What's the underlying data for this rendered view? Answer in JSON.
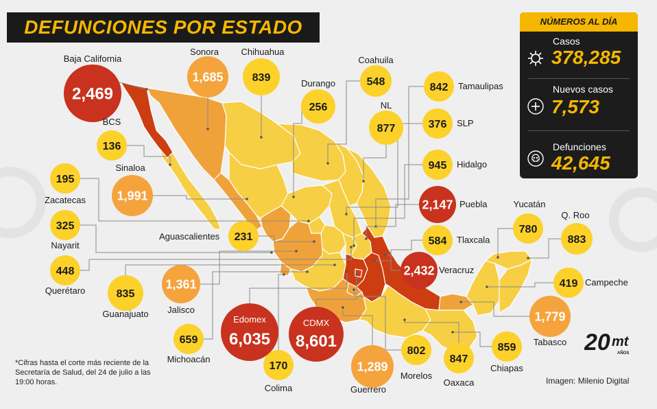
{
  "title": "DEFUNCIONES POR ESTADO",
  "panel": {
    "header": "NÚMEROS AL DÍA",
    "stats": [
      {
        "label": "Casos",
        "value": "378,285",
        "icon": "virus-icon"
      },
      {
        "label": "Nuevos casos",
        "value": "7,573",
        "icon": "plus-icon"
      },
      {
        "label": "Defunciones",
        "value": "42,645",
        "icon": "skull-icon"
      }
    ]
  },
  "states": [
    {
      "name": "Baja California",
      "value": "2,469",
      "level": "high"
    },
    {
      "name": "Sonora",
      "value": "1,685",
      "level": "mid"
    },
    {
      "name": "Chihuahua",
      "value": "839",
      "level": "low"
    },
    {
      "name": "Durango",
      "value": "256",
      "level": "low"
    },
    {
      "name": "Coahuila",
      "value": "548",
      "level": "low"
    },
    {
      "name": "Tamaulipas",
      "value": "842",
      "level": "low"
    },
    {
      "name": "NL",
      "value": "877",
      "level": "low"
    },
    {
      "name": "SLP",
      "value": "376",
      "level": "low"
    },
    {
      "name": "BCS",
      "value": "136",
      "level": "low"
    },
    {
      "name": "Sinaloa",
      "value": "1,991",
      "level": "mid"
    },
    {
      "name": "Hidalgo",
      "value": "945",
      "level": "low"
    },
    {
      "name": "Zacatecas",
      "value": "195",
      "level": "low"
    },
    {
      "name": "Puebla",
      "value": "2,147",
      "level": "high"
    },
    {
      "name": "Nayarit",
      "value": "325",
      "level": "low"
    },
    {
      "name": "Aguascalientes",
      "value": "231",
      "level": "low"
    },
    {
      "name": "Tlaxcala",
      "value": "584",
      "level": "low"
    },
    {
      "name": "Yucatán",
      "value": "780",
      "level": "low"
    },
    {
      "name": "Q. Roo",
      "value": "883",
      "level": "low"
    },
    {
      "name": "Querétaro",
      "value": "448",
      "level": "low"
    },
    {
      "name": "Veracruz",
      "value": "2,432",
      "level": "high"
    },
    {
      "name": "Guanajuato",
      "value": "835",
      "level": "low"
    },
    {
      "name": "Jalisco",
      "value": "1,361",
      "level": "mid"
    },
    {
      "name": "Campeche",
      "value": "419",
      "level": "low"
    },
    {
      "name": "Edomex",
      "value": "6,035",
      "level": "high"
    },
    {
      "name": "CDMX",
      "value": "8,601",
      "level": "high"
    },
    {
      "name": "Tabasco",
      "value": "1,779",
      "level": "mid"
    },
    {
      "name": "Michoacán",
      "value": "659",
      "level": "low"
    },
    {
      "name": "Colima",
      "value": "170",
      "level": "low"
    },
    {
      "name": "Guerrero",
      "value": "1,289",
      "level": "mid"
    },
    {
      "name": "Morelos",
      "value": "802",
      "level": "low"
    },
    {
      "name": "Oaxaca",
      "value": "847",
      "level": "low"
    },
    {
      "name": "Chiapas",
      "value": "859",
      "level": "low"
    }
  ],
  "colors": {
    "low": "#fcd12a",
    "mid": "#f5a33c",
    "high": "#c8321e",
    "map_low": "#f7cf45",
    "map_mid": "#f0a23a",
    "map_high": "#cc3d12"
  },
  "note": "*Cifras hasta el corte más reciente de la Secretaría de Salud, del 24 de julio a las 19:00 horas.",
  "credit": "Imagen: Milenio Digital",
  "logo": {
    "number": "20",
    "brand": "mt",
    "sub": "AÑOS"
  }
}
